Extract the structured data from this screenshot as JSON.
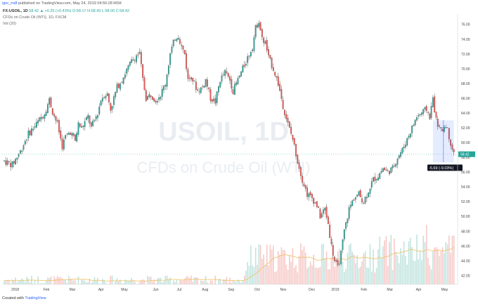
{
  "header": {
    "author": "igor_mdf",
    "published_text": "published on TradingView.com, May 24, 2019 04:50:28 MSK"
  },
  "legend": {
    "symbol_line": "FX:USOIL, 1D",
    "ohlc_text": "58.42 ▲ +0.25 (+0.43%) O:58.17 H:58.43 L:58.00 C:58.42",
    "info": "CFDs on Crude Oil (WTI), 1D, FXCM",
    "vol_label": "Vol (20)"
  },
  "watermark": {
    "symbol": "USOIL, 1D",
    "desc": "CFDs on Crude Oil (WTI)"
  },
  "footer": {
    "created_with": "Created with",
    "brand": "TradingView"
  },
  "colors": {
    "up": "#26a69a",
    "down": "#ef5350",
    "measure": "#2962ff",
    "label_bg": "#131722",
    "vol_ma": "#f0c060"
  },
  "chart_data": {
    "type": "candlestick",
    "title": "FX:USOIL, 1D",
    "y_ticks": [
      42,
      44,
      46,
      48,
      50,
      52,
      54,
      56,
      58,
      60,
      62,
      64,
      66,
      68,
      70,
      72,
      74,
      76
    ],
    "y_tick_labels": [
      "42.00",
      "44.00",
      "46.00",
      "48.00",
      "50.00",
      "52.00",
      "54.00",
      "56.00",
      "58.00",
      "60.00",
      "62.00",
      "64.00",
      "66.00",
      "68.00",
      "70.00",
      "72.00",
      "74.00",
      "76.00"
    ],
    "ylim": [
      40.8,
      77.4
    ],
    "x_ticks": [
      "2018",
      "Feb",
      "Mar",
      "Apr",
      "May",
      "Jun",
      "Jul",
      "Aug",
      "Sep",
      "Oct",
      "Nov",
      "Dec",
      "2019",
      "Feb",
      "Mar",
      "Apr",
      "May"
    ],
    "path_points": [
      [
        0,
        57.5
      ],
      [
        5,
        57.0
      ],
      [
        10,
        58.8
      ],
      [
        15,
        61.2
      ],
      [
        20,
        62.5
      ],
      [
        25,
        64.0
      ],
      [
        28,
        65.8
      ],
      [
        30,
        64.2
      ],
      [
        33,
        62.5
      ],
      [
        36,
        59.5
      ],
      [
        38,
        60.8
      ],
      [
        41,
        61.5
      ],
      [
        44,
        60.2
      ],
      [
        46,
        62.5
      ],
      [
        48,
        62.0
      ],
      [
        52,
        63.5
      ],
      [
        54,
        62.0
      ],
      [
        58,
        64.0
      ],
      [
        60,
        65.8
      ],
      [
        62,
        66.5
      ],
      [
        64,
        66.5
      ],
      [
        66,
        64.5
      ],
      [
        70,
        67.5
      ],
      [
        73,
        68.5
      ],
      [
        76,
        69.8
      ],
      [
        79,
        71.0
      ],
      [
        82,
        71.8
      ],
      [
        84,
        72.0
      ],
      [
        86,
        68.5
      ],
      [
        88,
        66.0
      ],
      [
        91,
        66.5
      ],
      [
        94,
        65.8
      ],
      [
        97,
        66.5
      ],
      [
        100,
        68.0
      ],
      [
        103,
        72.0
      ],
      [
        106,
        74.2
      ],
      [
        108,
        74.5
      ],
      [
        110,
        73.0
      ],
      [
        112,
        72.0
      ],
      [
        114,
        68.5
      ],
      [
        116,
        69.0
      ],
      [
        120,
        67.0
      ],
      [
        123,
        67.5
      ],
      [
        125,
        68.5
      ],
      [
        128,
        66.0
      ],
      [
        131,
        65.5
      ],
      [
        134,
        68.5
      ],
      [
        137,
        69.5
      ],
      [
        140,
        68.5
      ],
      [
        142,
        67.0
      ],
      [
        145,
        68.5
      ],
      [
        148,
        70.0
      ],
      [
        151,
        71.5
      ],
      [
        154,
        73.0
      ],
      [
        156,
        75.5
      ],
      [
        158,
        76.5
      ],
      [
        160,
        74.0
      ],
      [
        162,
        73.5
      ],
      [
        164,
        71.5
      ],
      [
        167,
        70.0
      ],
      [
        170,
        68.0
      ],
      [
        173,
        65.0
      ],
      [
        176,
        62.5
      ],
      [
        179,
        60.5
      ],
      [
        182,
        57.5
      ],
      [
        185,
        55.0
      ],
      [
        188,
        53.0
      ],
      [
        191,
        52.5
      ],
      [
        194,
        51.5
      ],
      [
        196,
        50.0
      ],
      [
        199,
        51.0
      ],
      [
        201,
        49.0
      ],
      [
        203,
        46.0
      ],
      [
        205,
        44.0
      ],
      [
        207,
        43.0
      ],
      [
        209,
        45.0
      ],
      [
        211,
        48.0
      ],
      [
        214,
        51.0
      ],
      [
        217,
        52.5
      ],
      [
        220,
        53.0
      ],
      [
        223,
        52.0
      ],
      [
        226,
        53.5
      ],
      [
        229,
        55.0
      ],
      [
        232,
        55.5
      ],
      [
        235,
        56.5
      ],
      [
        238,
        56.0
      ],
      [
        241,
        56.5
      ],
      [
        244,
        58.0
      ],
      [
        247,
        59.0
      ],
      [
        250,
        60.5
      ],
      [
        253,
        62.0
      ],
      [
        256,
        63.5
      ],
      [
        259,
        64.0
      ],
      [
        262,
        64.5
      ],
      [
        264,
        63.5
      ],
      [
        266,
        66.0
      ],
      [
        268,
        63.0
      ],
      [
        271,
        61.5
      ],
      [
        274,
        62.5
      ],
      [
        277,
        60.0
      ],
      [
        279,
        58.42
      ]
    ],
    "n_candles": 280,
    "x_tick_positions": [
      0.05,
      0.17,
      0.27,
      0.38,
      0.47,
      0.59,
      0.68,
      0.78,
      0.88,
      0.98,
      1.08,
      1.19,
      1.28,
      1.39,
      1.49,
      1.6,
      1.7
    ],
    "last_price": "58.42",
    "measure": {
      "label": "-5.69 (-9.03%)",
      "from": 63.0,
      "to": 57.3
    },
    "volume": {
      "max_share_of_range": 0.22
    }
  }
}
